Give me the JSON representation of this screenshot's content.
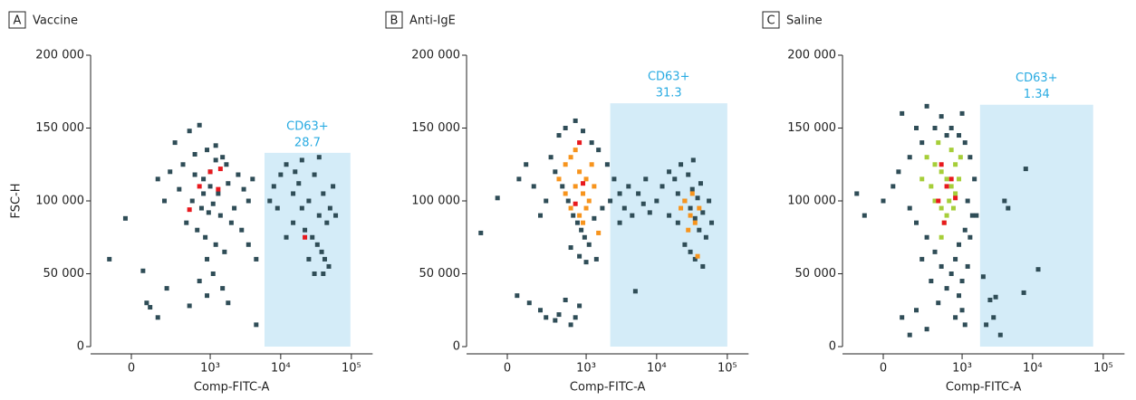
{
  "chart_data": [
    {
      "type": "scatter",
      "panel_label": "A",
      "title": "Vaccine",
      "xlabel": "Comp-FITC-A",
      "ylabel": "FSC-H",
      "xscale": "biexponential",
      "xlim": [
        -270,
        200000
      ],
      "ylim": [
        0,
        200000
      ],
      "xticks": [
        0,
        {
          "value": 1000,
          "label": "10³"
        },
        {
          "value": 10000,
          "label": "10⁴"
        },
        {
          "value": 100000,
          "label": "10⁵"
        }
      ],
      "yticks": [
        0,
        {
          "value": 50000,
          "label": "50 000"
        },
        {
          "value": 100000,
          "label": "100 000"
        },
        {
          "value": 150000,
          "label": "150 000"
        },
        {
          "value": 200000,
          "label": "200 000"
        }
      ],
      "gate": {
        "label": "CD63+",
        "value": 28.7,
        "x": [
          5900,
          97000
        ],
        "y": [
          0,
          133000
        ],
        "color": "#d4ecf8",
        "text_color": "#29abe2"
      },
      "series": [
        {
          "color": "#2f4d57",
          "x": [
            300,
            500,
            700,
            900,
            1200,
            1500,
            400,
            600,
            800,
            1000,
            1300,
            1800,
            2500,
            3000,
            350,
            550,
            750,
            950,
            1100,
            1400,
            2000,
            450,
            650,
            850,
            1200,
            1600,
            2200,
            3500,
            250,
            200,
            150,
            600,
            1700,
            4000,
            900,
            1100,
            700,
            1500,
            900,
            500,
            -30,
            -120,
            60,
            80,
            100,
            150,
            220,
            4500,
            1800,
            1000,
            800,
            1200,
            2800,
            3500,
            4500,
            8000,
            10000,
            12000,
            15000,
            18000,
            20000,
            25000,
            30000,
            35000,
            40000,
            45000,
            50000,
            22000,
            28000,
            33000,
            38000,
            42000,
            48000,
            30000,
            15000,
            12000,
            9000,
            7000,
            20000,
            35000,
            55000,
            60000,
            25000,
            40000,
            16000
          ],
          "y": [
            140000,
            148000,
            152000,
            135000,
            138000,
            130000,
            125000,
            118000,
            115000,
            110000,
            105000,
            112000,
            118000,
            108000,
            108000,
            100000,
            95000,
            92000,
            98000,
            90000,
            85000,
            85000,
            80000,
            75000,
            70000,
            65000,
            95000,
            100000,
            120000,
            100000,
            115000,
            132000,
            125000,
            115000,
            60000,
            50000,
            45000,
            40000,
            35000,
            28000,
            88000,
            60000,
            52000,
            30000,
            27000,
            20000,
            40000,
            15000,
            30000,
            120000,
            105000,
            128000,
            80000,
            70000,
            60000,
            110000,
            118000,
            125000,
            105000,
            112000,
            95000,
            100000,
            118000,
            90000,
            105000,
            85000,
            95000,
            80000,
            75000,
            70000,
            65000,
            60000,
            55000,
            50000,
            85000,
            75000,
            95000,
            100000,
            128000,
            130000,
            110000,
            90000,
            60000,
            50000,
            120000
          ]
        },
        {
          "color": "#e8191e",
          "x": [
            700,
            1000,
            1400,
            1300,
            500,
            22000
          ],
          "y": [
            110000,
            120000,
            122000,
            108000,
            94000,
            75000
          ]
        }
      ]
    },
    {
      "type": "scatter",
      "panel_label": "B",
      "title": "Anti-IgE",
      "xlabel": "Comp-FITC-A",
      "xscale": "biexponential",
      "xlim": [
        -270,
        200000
      ],
      "ylim": [
        0,
        200000
      ],
      "xticks": [
        0,
        {
          "value": 1000,
          "label": "10³"
        },
        {
          "value": 10000,
          "label": "10⁴"
        },
        {
          "value": 100000,
          "label": "10⁵"
        }
      ],
      "yticks": [
        0,
        {
          "value": 50000,
          "label": "50 000"
        },
        {
          "value": 100000,
          "label": "100 000"
        },
        {
          "value": 150000,
          "label": "150 000"
        },
        {
          "value": 200000,
          "label": "200 000"
        }
      ],
      "gate": {
        "label": "CD63+",
        "value": 31.3,
        "x": [
          2200,
          100000
        ],
        "y": [
          0,
          167000
        ],
        "color": "#d4ecf8",
        "text_color": "#29abe2"
      },
      "series": [
        {
          "color": "#2f4d57",
          "x": [
            300,
            400,
            500,
            700,
            900,
            1200,
            1500,
            2000,
            2500,
            3000,
            350,
            450,
            550,
            650,
            750,
            850,
            950,
            1100,
            1300,
            1700,
            2200,
            250,
            200,
            150,
            100,
            -50,
            -150,
            60,
            800,
            1000,
            600,
            1400,
            3500,
            4500,
            5500,
            6500,
            8000,
            4000,
            7000,
            3000,
            12000,
            15000,
            18000,
            20000,
            22000,
            25000,
            28000,
            30000,
            32000,
            35000,
            38000,
            40000,
            45000,
            50000,
            25000,
            30000,
            35000,
            45000,
            20000,
            15000,
            10000,
            55000,
            60000,
            42000,
            33000,
            50,
            120,
            200,
            250,
            400,
            600,
            700,
            800,
            500,
            350,
            5000
          ],
          "y": [
            130000,
            145000,
            150000,
            155000,
            148000,
            140000,
            135000,
            125000,
            115000,
            105000,
            120000,
            110000,
            100000,
            90000,
            85000,
            80000,
            75000,
            70000,
            88000,
            95000,
            100000,
            100000,
            90000,
            110000,
            125000,
            102000,
            78000,
            115000,
            62000,
            58000,
            68000,
            60000,
            95000,
            90000,
            105000,
            98000,
            92000,
            110000,
            115000,
            85000,
            110000,
            120000,
            115000,
            105000,
            125000,
            100000,
            118000,
            95000,
            108000,
            88000,
            102000,
            80000,
            92000,
            75000,
            70000,
            65000,
            60000,
            55000,
            85000,
            90000,
            100000,
            100000,
            85000,
            112000,
            128000,
            35000,
            30000,
            25000,
            20000,
            22000,
            15000,
            20000,
            28000,
            32000,
            18000,
            38000
          ]
        },
        {
          "color": "#f7941d",
          "x": [
            500,
            600,
            800,
            1000,
            700,
            900,
            1100,
            600,
            800,
            1200,
            400,
            1300,
            700,
            500,
            1000,
            900,
            1500,
            25000,
            30000,
            35000,
            28000,
            40000,
            32000,
            38000,
            22000
          ],
          "y": [
            125000,
            130000,
            120000,
            115000,
            110000,
            105000,
            100000,
            95000,
            90000,
            125000,
            115000,
            110000,
            135000,
            105000,
            95000,
            85000,
            78000,
            100000,
            90000,
            85000,
            80000,
            95000,
            105000,
            62000,
            95000
          ]
        },
        {
          "color": "#e8191e",
          "x": [
            800,
            700,
            900
          ],
          "y": [
            140000,
            98000,
            112000
          ]
        }
      ]
    },
    {
      "type": "scatter",
      "panel_label": "C",
      "title": "Saline",
      "xlabel": "Comp-FITC-A",
      "xscale": "biexponential",
      "xlim": [
        -270,
        200000
      ],
      "ylim": [
        0,
        200000
      ],
      "xticks": [
        0,
        {
          "value": 1000,
          "label": "10³"
        },
        {
          "value": 10000,
          "label": "10⁴"
        },
        {
          "value": 100000,
          "label": "10⁵"
        }
      ],
      "yticks": [
        0,
        {
          "value": 50000,
          "label": "50 000"
        },
        {
          "value": 100000,
          "label": "100 000"
        },
        {
          "value": 150000,
          "label": "150 000"
        },
        {
          "value": 200000,
          "label": "200 000"
        }
      ],
      "gate": {
        "label": "CD63+",
        "value": 1.34,
        "x": [
          1800,
          72000
        ],
        "y": [
          0,
          166000
        ],
        "color": "#d4ecf8",
        "text_color": "#29abe2"
      },
      "series": [
        {
          "color": "#2f4d57",
          "x": [
            100,
            300,
            500,
            700,
            900,
            1100,
            250,
            150,
            80,
            50,
            0,
            -100,
            -150,
            1300,
            1500,
            1200,
            1400,
            1100,
            900,
            800,
            700,
            600,
            900,
            1000,
            1100,
            500,
            400,
            300,
            200,
            150,
            250,
            350,
            100,
            200,
            300,
            150,
            450,
            800,
            1000,
            1200,
            600,
            400,
            1000,
            200,
            1300,
            2000,
            2500,
            3000,
            2200,
            3500,
            2800,
            4000,
            4500,
            8000,
            12000,
            7500,
            1600
          ],
          "y": [
            160000,
            165000,
            158000,
            150000,
            145000,
            140000,
            140000,
            130000,
            120000,
            110000,
            100000,
            90000,
            105000,
            130000,
            115000,
            100000,
            90000,
            80000,
            70000,
            60000,
            50000,
            40000,
            35000,
            25000,
            15000,
            55000,
            65000,
            75000,
            85000,
            95000,
            60000,
            45000,
            20000,
            25000,
            12000,
            8000,
            30000,
            20000,
            45000,
            55000,
            145000,
            150000,
            160000,
            150000,
            75000,
            48000,
            32000,
            34000,
            15000,
            8000,
            20000,
            100000,
            95000,
            122000,
            53000,
            37000,
            90000
          ]
        },
        {
          "color": "#a6ce39",
          "x": [
            300,
            400,
            500,
            600,
            700,
            800,
            400,
            500,
            600,
            700,
            800,
            900,
            350,
            450,
            550,
            650,
            750,
            250,
            950,
            500
          ],
          "y": [
            130000,
            125000,
            120000,
            115000,
            110000,
            105000,
            100000,
            95000,
            90000,
            135000,
            125000,
            115000,
            110000,
            140000,
            85000,
            100000,
            95000,
            115000,
            130000,
            75000
          ]
        },
        {
          "color": "#e8191e",
          "x": [
            500,
            600,
            700,
            450,
            550,
            800
          ],
          "y": [
            125000,
            110000,
            115000,
            100000,
            85000,
            102000
          ]
        }
      ]
    }
  ]
}
